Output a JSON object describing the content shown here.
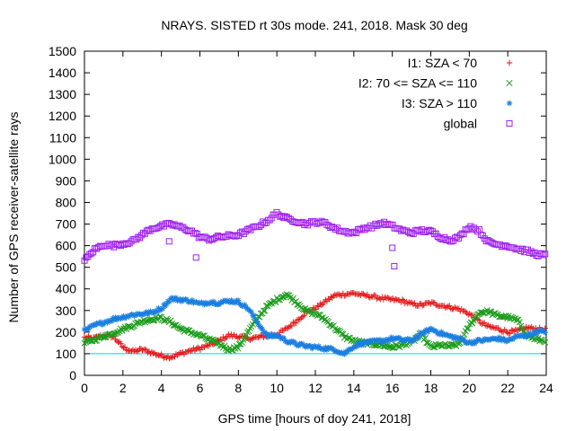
{
  "chart_data": {
    "type": "scatter",
    "title": "NRAYS. SISTED rt 30s mode. 241, 2018. Mask 30 deg",
    "xlabel": "GPS time [hours of doy 241, 2018]",
    "ylabel": "Number of GPS receiver-satellite rays",
    "xlim": [
      0,
      24
    ],
    "ylim": [
      0,
      1500
    ],
    "xticks": [
      "0",
      "2",
      "4",
      "6",
      "8",
      "10",
      "12",
      "14",
      "16",
      "18",
      "20",
      "22",
      "24"
    ],
    "yticks": [
      "0",
      "100",
      "200",
      "300",
      "400",
      "500",
      "600",
      "700",
      "800",
      "900",
      "1000",
      "1100",
      "1200",
      "1300",
      "1400",
      "1500"
    ],
    "reference_line": {
      "y": 100,
      "color": "#00d0d0"
    },
    "legend_position": "top-right",
    "series": [
      {
        "name": "I1: SZA < 70",
        "marker": "+",
        "color": "#e41a1c",
        "points": [
          [
            0,
            175
          ],
          [
            0.5,
            170
          ],
          [
            1,
            185
          ],
          [
            1.5,
            180
          ],
          [
            2,
            130
          ],
          [
            2.5,
            110
          ],
          [
            3,
            120
          ],
          [
            3.5,
            105
          ],
          [
            4,
            90
          ],
          [
            4.5,
            85
          ],
          [
            5,
            100
          ],
          [
            5.5,
            115
          ],
          [
            6,
            125
          ],
          [
            6.5,
            140
          ],
          [
            7,
            160
          ],
          [
            7.5,
            185
          ],
          [
            8,
            180
          ],
          [
            8.5,
            170
          ],
          [
            9,
            175
          ],
          [
            9.5,
            185
          ],
          [
            10,
            190
          ],
          [
            10.5,
            215
          ],
          [
            11,
            250
          ],
          [
            11.5,
            290
          ],
          [
            12,
            310
          ],
          [
            12.5,
            340
          ],
          [
            13,
            370
          ],
          [
            13.5,
            375
          ],
          [
            14,
            380
          ],
          [
            14.5,
            370
          ],
          [
            15,
            365
          ],
          [
            15.5,
            355
          ],
          [
            16,
            350
          ],
          [
            16.5,
            345
          ],
          [
            17,
            330
          ],
          [
            17.5,
            325
          ],
          [
            18,
            335
          ],
          [
            18.5,
            325
          ],
          [
            19,
            315
          ],
          [
            19.5,
            305
          ],
          [
            20,
            285
          ],
          [
            20.5,
            250
          ],
          [
            21,
            225
          ],
          [
            21.5,
            215
          ],
          [
            22,
            200
          ],
          [
            22.5,
            205
          ],
          [
            23,
            220
          ],
          [
            23.5,
            215
          ],
          [
            24,
            210
          ]
        ]
      },
      {
        "name": "I2: 70 <= SZA <= 110",
        "marker": "x",
        "color": "#1a9c1a",
        "points": [
          [
            0,
            150
          ],
          [
            0.5,
            165
          ],
          [
            1,
            180
          ],
          [
            1.5,
            195
          ],
          [
            2,
            215
          ],
          [
            2.5,
            230
          ],
          [
            3,
            250
          ],
          [
            3.5,
            260
          ],
          [
            4,
            265
          ],
          [
            4.5,
            245
          ],
          [
            5,
            215
          ],
          [
            5.5,
            200
          ],
          [
            6,
            185
          ],
          [
            6.5,
            165
          ],
          [
            7,
            145
          ],
          [
            7.5,
            120
          ],
          [
            8,
            130
          ],
          [
            8.5,
            200
          ],
          [
            9,
            265
          ],
          [
            9.5,
            320
          ],
          [
            10,
            350
          ],
          [
            10.5,
            375
          ],
          [
            11,
            340
          ],
          [
            11.5,
            300
          ],
          [
            12,
            285
          ],
          [
            12.5,
            260
          ],
          [
            13,
            220
          ],
          [
            13.5,
            180
          ],
          [
            14,
            160
          ],
          [
            14.5,
            150
          ],
          [
            15,
            145
          ],
          [
            15.5,
            140
          ],
          [
            16,
            130
          ],
          [
            16.5,
            140
          ],
          [
            17,
            155
          ],
          [
            17.5,
            190
          ],
          [
            18,
            130
          ],
          [
            18.5,
            140
          ],
          [
            19,
            135
          ],
          [
            19.5,
            145
          ],
          [
            20,
            230
          ],
          [
            20.5,
            290
          ],
          [
            21,
            295
          ],
          [
            21.5,
            275
          ],
          [
            22,
            270
          ],
          [
            22.5,
            255
          ],
          [
            23,
            185
          ],
          [
            23.5,
            165
          ],
          [
            24,
            160
          ]
        ]
      },
      {
        "name": "I3: SZA > 110",
        "marker": "*",
        "color": "#1a7fe0",
        "points": [
          [
            0,
            205
          ],
          [
            0.5,
            230
          ],
          [
            1,
            245
          ],
          [
            1.5,
            260
          ],
          [
            2,
            270
          ],
          [
            2.5,
            280
          ],
          [
            3,
            285
          ],
          [
            3.5,
            290
          ],
          [
            4,
            310
          ],
          [
            4.5,
            355
          ],
          [
            5,
            350
          ],
          [
            5.5,
            345
          ],
          [
            6,
            330
          ],
          [
            6.5,
            340
          ],
          [
            7,
            335
          ],
          [
            7.5,
            345
          ],
          [
            8,
            340
          ],
          [
            8.5,
            310
          ],
          [
            9,
            245
          ],
          [
            9.5,
            180
          ],
          [
            10,
            185
          ],
          [
            10.5,
            160
          ],
          [
            11,
            145
          ],
          [
            11.5,
            135
          ],
          [
            12,
            130
          ],
          [
            12.5,
            125
          ],
          [
            13,
            120
          ],
          [
            13.5,
            100
          ],
          [
            14,
            135
          ],
          [
            14.5,
            150
          ],
          [
            15,
            155
          ],
          [
            15.5,
            160
          ],
          [
            16,
            170
          ],
          [
            16.5,
            165
          ],
          [
            17,
            160
          ],
          [
            17.5,
            190
          ],
          [
            18,
            215
          ],
          [
            18.5,
            195
          ],
          [
            19,
            180
          ],
          [
            19.5,
            170
          ],
          [
            20,
            150
          ],
          [
            20.5,
            160
          ],
          [
            21,
            165
          ],
          [
            21.5,
            170
          ],
          [
            22,
            160
          ],
          [
            22.5,
            180
          ],
          [
            23,
            185
          ],
          [
            23.5,
            200
          ],
          [
            24,
            205
          ]
        ]
      },
      {
        "name": "global",
        "marker": "square",
        "color": "#a020f0",
        "points": [
          [
            0,
            530
          ],
          [
            0.5,
            580
          ],
          [
            1,
            605
          ],
          [
            1.5,
            600
          ],
          [
            2,
            610
          ],
          [
            2.5,
            620
          ],
          [
            3,
            650
          ],
          [
            3.5,
            680
          ],
          [
            4,
            690
          ],
          [
            4.5,
            700
          ],
          [
            5,
            685
          ],
          [
            5.5,
            670
          ],
          [
            6,
            640
          ],
          [
            6.5,
            630
          ],
          [
            7,
            640
          ],
          [
            7.5,
            645
          ],
          [
            8,
            650
          ],
          [
            8.5,
            670
          ],
          [
            9,
            690
          ],
          [
            9.5,
            715
          ],
          [
            10,
            750
          ],
          [
            10.5,
            725
          ],
          [
            11,
            715
          ],
          [
            11.5,
            700
          ],
          [
            12,
            710
          ],
          [
            12.5,
            705
          ],
          [
            13,
            680
          ],
          [
            13.5,
            665
          ],
          [
            14,
            660
          ],
          [
            14.5,
            680
          ],
          [
            15,
            690
          ],
          [
            15.5,
            705
          ],
          [
            16,
            690
          ],
          [
            16.5,
            670
          ],
          [
            17,
            660
          ],
          [
            17.5,
            670
          ],
          [
            18,
            665
          ],
          [
            18.5,
            640
          ],
          [
            19,
            625
          ],
          [
            19.5,
            640
          ],
          [
            20,
            690
          ],
          [
            20.5,
            670
          ],
          [
            21,
            615
          ],
          [
            21.5,
            605
          ],
          [
            22,
            600
          ],
          [
            22.5,
            585
          ],
          [
            23,
            575
          ],
          [
            23.5,
            560
          ],
          [
            24,
            555
          ]
        ],
        "outliers": [
          [
            4.4,
            620
          ],
          [
            5.8,
            545
          ],
          [
            16.1,
            505
          ],
          [
            16.0,
            590
          ]
        ]
      }
    ]
  }
}
